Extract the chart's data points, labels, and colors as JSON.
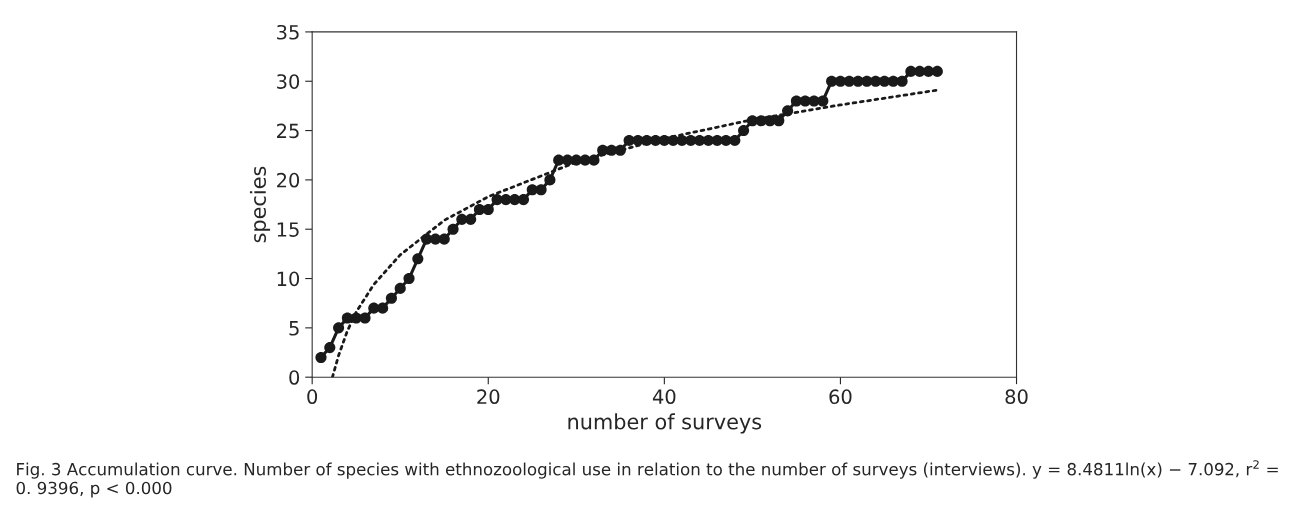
{
  "chart_data": {
    "type": "line",
    "xlabel": "number of surveys",
    "ylabel": "species",
    "xlim": [
      0,
      80
    ],
    "xticks": [
      0,
      20,
      40,
      60,
      80
    ],
    "ylim": [
      0,
      35
    ],
    "yticks": [
      0,
      5,
      10,
      15,
      20,
      25,
      30,
      35
    ],
    "grid": false,
    "legend": false,
    "series": [
      {
        "color": "#1a1a1a",
        "marker": "circle",
        "line_style": "solid",
        "x": [
          1,
          2,
          3,
          4,
          5,
          6,
          7,
          8,
          9,
          10,
          11,
          12,
          13,
          14,
          15,
          16,
          17,
          18,
          19,
          20,
          21,
          22,
          23,
          24,
          25,
          26,
          27,
          28,
          29,
          30,
          31,
          32,
          33,
          34,
          35,
          36,
          37,
          38,
          39,
          40,
          41,
          42,
          43,
          44,
          45,
          46,
          47,
          48,
          49,
          50,
          51,
          52,
          53,
          54,
          55,
          56,
          57,
          58,
          59,
          60,
          61,
          62,
          63,
          64,
          65,
          66,
          67,
          68,
          69,
          70,
          71
        ],
        "values": [
          2,
          3,
          5,
          6,
          6,
          6,
          7,
          7,
          8,
          9,
          10,
          12,
          14,
          14,
          14,
          15,
          16,
          16,
          17,
          17,
          18,
          18,
          18,
          18,
          19,
          19,
          20,
          22,
          22,
          22,
          22,
          22,
          23,
          23,
          23,
          24,
          24,
          24,
          24,
          24,
          24,
          24,
          24,
          24,
          24,
          24,
          24,
          24,
          25,
          26,
          26,
          26,
          26,
          27,
          28,
          28,
          28,
          28,
          30,
          30,
          30,
          30,
          30,
          30,
          30,
          30,
          30,
          31,
          31,
          31,
          31
        ]
      },
      {
        "type": "line",
        "color": "#1a1a1a",
        "marker": "none",
        "line_style": "dotted",
        "x": [
          2.3,
          3,
          4,
          5,
          7,
          10,
          15,
          20,
          30,
          40,
          50,
          60,
          71
        ],
        "values": [
          0,
          2.2,
          4.7,
          6.6,
          9.4,
          12.4,
          15.9,
          18.3,
          21.8,
          24.2,
          26.1,
          27.6,
          29.1
        ]
      }
    ],
    "annotations": [
      "Fig. 3 Accumulation curve. Number of species with ethnozoological use in relation to the number of surveys (interviews). y = 8.4811ln(x) − 7.092, r$^{2}$ = 0. 9396, p < 0.000"
    ]
  }
}
